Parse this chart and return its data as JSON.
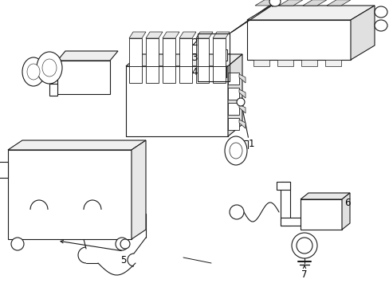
{
  "bg_color": "#ffffff",
  "line_color": "#1a1a1a",
  "lw": 0.8,
  "fig_w": 4.89,
  "fig_h": 3.6,
  "dpi": 100
}
